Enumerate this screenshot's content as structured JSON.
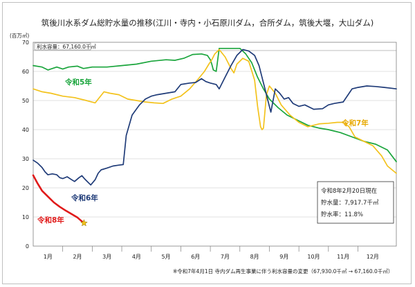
{
  "chart_data": {
    "type": "line",
    "title": "筑後川水系ダム総貯水量の推移(江川・寺内・小石原川ダム，合所ダム，筑後大堰，大山ダム)",
    "ylabel": "(百万㎥)",
    "ylim": [
      0,
      70
    ],
    "yticks": [
      0,
      10,
      20,
      30,
      40,
      50,
      60,
      70
    ],
    "x_range": [
      0,
      12.3
    ],
    "x_ticks": [
      "1月",
      "2月",
      "3月",
      "4月",
      "5月",
      "6月",
      "7月",
      "8月",
      "9月",
      "10月",
      "11月",
      "12月"
    ],
    "capacity_label": "利水容量：67,160.0千㎥",
    "capacity_value": 67.16,
    "info_box": {
      "date": "令和8年2月20日現在",
      "storage": "貯水量：7,917.7千㎥",
      "rate": "貯水率：11.8%"
    },
    "footnote": "※令和7年4月1日 寺内ダム再生事業に伴う利水容量の変更（67,930.0千㎥ → 67,160.0千㎥）",
    "series": [
      {
        "name": "令和5年",
        "color": "#1aa53c",
        "label_color": "#1aa53c",
        "x": [
          0,
          0.3,
          0.5,
          0.8,
          1.0,
          1.2,
          1.5,
          1.7,
          2.0,
          2.5,
          3.0,
          3.5,
          4.0,
          4.5,
          4.8,
          5.1,
          5.4,
          5.7,
          5.9,
          6.0,
          6.05,
          6.1,
          6.2,
          6.3,
          6.5,
          6.8,
          7.0,
          7.2,
          7.4,
          7.6,
          7.8,
          8.0,
          8.3,
          8.6,
          9.0,
          9.3,
          9.7,
          10.0,
          10.4,
          10.8,
          11.2,
          11.6,
          12.0,
          12.3
        ],
        "y": [
          62,
          61.5,
          60.5,
          61.5,
          60.8,
          61.5,
          61.8,
          61,
          61.5,
          61.5,
          62,
          62.5,
          63.5,
          64,
          63.8,
          64.5,
          65.8,
          66,
          65.5,
          64,
          62.5,
          60.5,
          60,
          67.9,
          67.9,
          67.9,
          67.9,
          66,
          63,
          58,
          54,
          50.5,
          47.5,
          45,
          43,
          41.5,
          40.5,
          40,
          39,
          37.5,
          36,
          35,
          33,
          29
        ]
      },
      {
        "name": "令和6年",
        "color": "#1f3b78",
        "label_color": "#1f3b78",
        "x": [
          0,
          0.15,
          0.3,
          0.4,
          0.5,
          0.65,
          0.8,
          0.9,
          1.0,
          1.15,
          1.3,
          1.4,
          1.55,
          1.65,
          1.75,
          1.8,
          1.95,
          2.1,
          2.2,
          2.3,
          2.5,
          2.7,
          2.9,
          3.05,
          3.15,
          3.35,
          3.6,
          3.8,
          4.0,
          4.2,
          4.5,
          4.8,
          5.0,
          5.3,
          5.5,
          5.7,
          5.85,
          6.0,
          6.2,
          6.3,
          6.5,
          6.7,
          6.9,
          7.1,
          7.3,
          7.5,
          7.65,
          7.75,
          7.85,
          7.95,
          8.05,
          8.2,
          8.35,
          8.5,
          8.65,
          8.8,
          9.0,
          9.2,
          9.5,
          9.8,
          10.0,
          10.2,
          10.5,
          10.8,
          11.0,
          11.3,
          11.6,
          11.9,
          12.3
        ],
        "y": [
          29.5,
          28.5,
          27,
          25.5,
          24.5,
          24.8,
          24.5,
          23.5,
          23.2,
          23.8,
          22.8,
          22.2,
          23.5,
          24.2,
          23,
          22.5,
          21,
          22.8,
          25,
          26.2,
          26.8,
          27.5,
          27.8,
          28,
          38,
          45,
          48.5,
          50.5,
          51.5,
          52,
          52.5,
          53,
          55.5,
          56,
          56.2,
          57.5,
          56.5,
          56,
          55.5,
          54,
          58,
          62,
          65.5,
          67.5,
          67,
          65.5,
          62,
          58,
          54,
          50,
          46,
          54,
          52.5,
          50.5,
          51,
          49,
          48,
          48.5,
          47,
          47.2,
          48.5,
          49,
          49.5,
          54,
          54.5,
          55,
          54.8,
          54.5,
          54
        ]
      },
      {
        "name": "令和7年",
        "color": "#f3c21c",
        "label_color": "#e7a800",
        "x": [
          0,
          0.3,
          0.6,
          1.0,
          1.4,
          1.8,
          2.1,
          2.4,
          2.6,
          2.9,
          3.2,
          3.5,
          3.8,
          4.1,
          4.4,
          4.7,
          5.0,
          5.3,
          5.6,
          5.8,
          5.95,
          6.05,
          6.15,
          6.3,
          6.5,
          6.7,
          6.8,
          6.9,
          7.1,
          7.3,
          7.5,
          7.6,
          7.7,
          7.75,
          7.8,
          7.9,
          8.0,
          8.2,
          8.4,
          8.7,
          9.0,
          9.3,
          9.7,
          10.0,
          10.3,
          10.5,
          10.7,
          10.9,
          11.2,
          11.5,
          11.8,
          12.0,
          12.3
        ],
        "y": [
          54,
          53,
          52.5,
          51.5,
          51,
          50,
          49.2,
          53,
          52.5,
          52,
          50.5,
          50,
          49.5,
          49.2,
          49,
          50.5,
          51.5,
          54,
          57.5,
          60,
          62.5,
          64,
          66,
          67.5,
          65,
          61,
          59.5,
          62.5,
          64.5,
          63.5,
          57,
          48,
          41,
          40,
          40.5,
          52,
          55,
          52.5,
          48.5,
          45,
          42.5,
          41,
          42,
          42.2,
          42.5,
          42.5,
          41,
          37.5,
          36,
          34.5,
          31,
          27.5,
          25
        ]
      },
      {
        "name": "令和8年",
        "color": "#e01a1a",
        "label_color": "#e01a1a",
        "x": [
          0,
          0.15,
          0.3,
          0.5,
          0.7,
          0.9,
          1.1,
          1.3,
          1.5,
          1.65,
          1.72
        ],
        "y": [
          24.3,
          21.5,
          19,
          17,
          15,
          13.5,
          12.2,
          11,
          9.8,
          8.5,
          7.9
        ]
      }
    ],
    "series_labels": [
      "令和5年",
      "令和6年",
      "令和7年",
      "令和8年"
    ],
    "marker": {
      "x": 1.72,
      "y": 7.9,
      "color": "#f3c21c"
    }
  }
}
